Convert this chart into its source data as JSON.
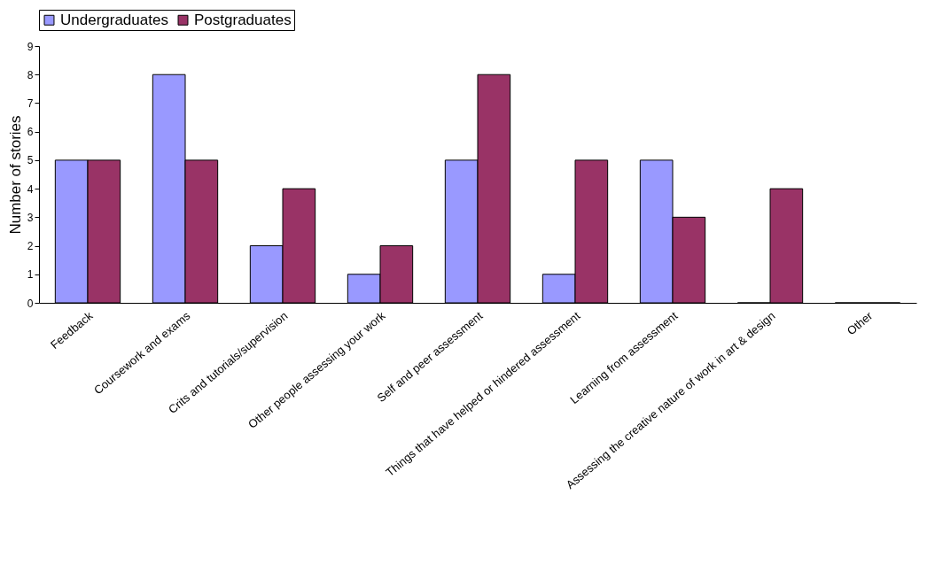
{
  "chart_data": {
    "type": "bar",
    "ylabel": "Number of stories",
    "categories": [
      "Feedback",
      "Coursework and exams",
      "Crits and tutorials/supervision",
      "Other people assessing your work",
      "Self and peer assessment",
      "Things that have helped or hindered assessment",
      "Learning from assessment",
      "Assessing the creative nature of work in art & design",
      "Other"
    ],
    "series": [
      {
        "name": "Undergraduates",
        "color": "#9999ff",
        "values": [
          5,
          8,
          2,
          1,
          5,
          1,
          5,
          0,
          0
        ]
      },
      {
        "name": "Postgraduates",
        "color": "#993366",
        "values": [
          5,
          5,
          4,
          2,
          8,
          5,
          3,
          4,
          0
        ]
      }
    ],
    "ylim": [
      0,
      9
    ],
    "yticks": [
      0,
      1,
      2,
      3,
      4,
      5,
      6,
      7,
      8,
      9
    ],
    "grid": false,
    "legend": "top"
  }
}
